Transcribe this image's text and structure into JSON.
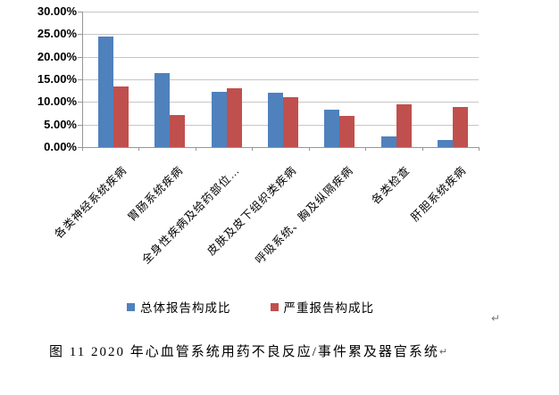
{
  "chart_data": {
    "type": "bar",
    "title": "",
    "xlabel": "",
    "ylabel": "",
    "categories": [
      "各类神经系统疾病",
      "胃肠系统疾病",
      "全身性疾病及给药部位…",
      "皮肤及皮下组织类疾病",
      "呼吸系统、胸及纵隔疾病",
      "各类检查",
      "肝胆系统疾病"
    ],
    "series": [
      {
        "name": "总体报告构成比",
        "color": "#4F81BD",
        "values": [
          24.4,
          16.3,
          12.2,
          12.0,
          8.3,
          2.4,
          1.6
        ]
      },
      {
        "name": "严重报告构成比",
        "color": "#C0504D",
        "values": [
          13.5,
          7.1,
          13.0,
          11.1,
          7.0,
          9.5,
          8.9
        ]
      }
    ],
    "ylim": [
      0,
      30
    ],
    "ytick_step": 5,
    "ytick_labels": [
      "0.00%",
      "5.00%",
      "10.00%",
      "15.00%",
      "20.00%",
      "25.00%",
      "30.00%"
    ],
    "grid": true,
    "legend_position": "bottom-center",
    "value_format": "percent"
  },
  "caption": {
    "text": "图 11  2020 年心血管系统用药不良反应/事件累及器官系统",
    "return_mark": "↵"
  },
  "stray_return_mark": "↵",
  "colors": {
    "series_total": "#4F81BD",
    "series_serious": "#C0504D",
    "gridline": "#C6C6C6",
    "axis": "#969696",
    "text": "#000000",
    "background": "#FFFFFF"
  }
}
